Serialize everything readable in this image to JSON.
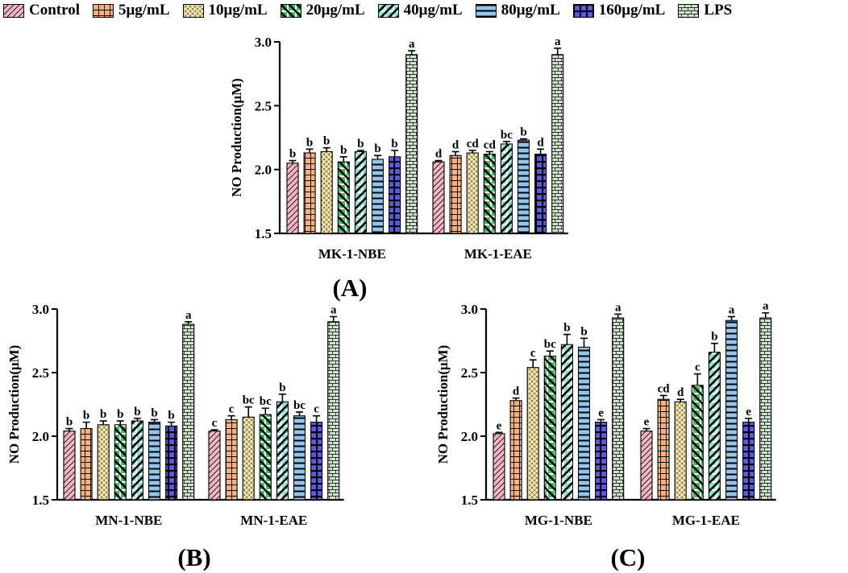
{
  "legend": [
    {
      "name": "Control",
      "color": "#f4b6c4",
      "pattern": "diag-right"
    },
    {
      "name": "5μg/mL",
      "color": "#f6b27a",
      "pattern": "grid"
    },
    {
      "name": "10μg/mL",
      "color": "#f2e3a6",
      "pattern": "cross-dots"
    },
    {
      "name": "20μg/mL",
      "color": "#3dbf5c",
      "pattern": "diag-left-bold"
    },
    {
      "name": "40μg/mL",
      "color": "#8fe6d4",
      "pattern": "diag-right-bold"
    },
    {
      "name": "80μg/mL",
      "color": "#92c6ef",
      "pattern": "horizontal"
    },
    {
      "name": "160μg/mL",
      "color": "#5b5be2",
      "pattern": "checker"
    },
    {
      "name": "LPS",
      "color": "#cfe3cf",
      "pattern": "brick"
    }
  ],
  "chart_data": [
    {
      "type": "bar",
      "panel_label": "(A)",
      "ylabel": "NO Production(μM)",
      "ylim": [
        1.5,
        3.0
      ],
      "yticks": [
        "1.5",
        "2.0",
        "2.5",
        "3.0"
      ],
      "groups": [
        {
          "name": "MK-1-NBE",
          "values": [
            2.05,
            2.13,
            2.14,
            2.06,
            2.14,
            2.08,
            2.1,
            2.9
          ],
          "errors": [
            0.02,
            0.03,
            0.03,
            0.04,
            0.01,
            0.03,
            0.05,
            0.03
          ],
          "letters": [
            "b",
            "b",
            "b",
            "b",
            "b",
            "b",
            "b",
            "a"
          ]
        },
        {
          "name": "MK-1-EAE",
          "values": [
            2.06,
            2.11,
            2.13,
            2.12,
            2.2,
            2.23,
            2.12,
            2.9
          ],
          "errors": [
            0.01,
            0.03,
            0.02,
            0.02,
            0.02,
            0.01,
            0.04,
            0.05
          ],
          "letters": [
            "d",
            "d",
            "cd",
            "cd",
            "bc",
            "b",
            "d",
            "a"
          ]
        }
      ]
    },
    {
      "type": "bar",
      "panel_label": "(B)",
      "ylabel": "NO Production(μM)",
      "ylim": [
        1.5,
        3.0
      ],
      "yticks": [
        "1.5",
        "2.0",
        "2.5",
        "3.0"
      ],
      "groups": [
        {
          "name": "MN-1-NBE",
          "values": [
            2.04,
            2.06,
            2.09,
            2.09,
            2.12,
            2.11,
            2.08,
            2.88
          ],
          "errors": [
            0.02,
            0.05,
            0.03,
            0.03,
            0.02,
            0.02,
            0.03,
            0.02
          ],
          "letters": [
            "b",
            "b",
            "b",
            "b",
            "b",
            "b",
            "b",
            "a"
          ]
        },
        {
          "name": "MN-1-EAE",
          "values": [
            2.04,
            2.13,
            2.15,
            2.17,
            2.27,
            2.16,
            2.11,
            2.9
          ],
          "errors": [
            0.01,
            0.03,
            0.08,
            0.05,
            0.06,
            0.03,
            0.05,
            0.04
          ],
          "letters": [
            "c",
            "c",
            "bc",
            "bc",
            "b",
            "bc",
            "c",
            "a"
          ]
        }
      ]
    },
    {
      "type": "bar",
      "panel_label": "(C)",
      "ylabel": "NO Production(μM)",
      "ylim": [
        1.5,
        3.0
      ],
      "yticks": [
        "1.5",
        "2.0",
        "2.5",
        "3.0"
      ],
      "groups": [
        {
          "name": "MG-1-NBE",
          "values": [
            2.02,
            2.28,
            2.54,
            2.63,
            2.72,
            2.7,
            2.11,
            2.93
          ],
          "errors": [
            0.01,
            0.02,
            0.06,
            0.04,
            0.08,
            0.07,
            0.02,
            0.03
          ],
          "letters": [
            "e",
            "d",
            "c",
            "bc",
            "b",
            "b",
            "e",
            "a"
          ]
        },
        {
          "name": "MG-1-EAE",
          "values": [
            2.04,
            2.29,
            2.27,
            2.4,
            2.66,
            2.91,
            2.11,
            2.93
          ],
          "errors": [
            0.02,
            0.03,
            0.02,
            0.09,
            0.07,
            0.03,
            0.03,
            0.04
          ],
          "letters": [
            "e",
            "cd",
            "d",
            "c",
            "b",
            "a",
            "e",
            "a"
          ]
        }
      ]
    }
  ]
}
